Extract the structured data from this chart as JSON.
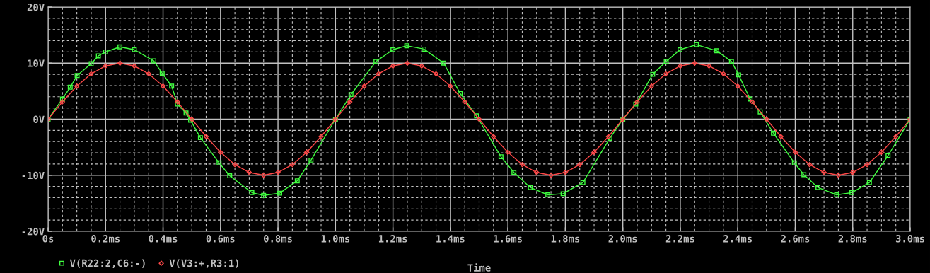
{
  "chart_data": {
    "type": "line",
    "xlabel": "Time",
    "xlim": [
      0,
      3.0
    ],
    "ylim": [
      -20,
      20
    ],
    "xticks": [
      {
        "value": 0,
        "label": "0s"
      },
      {
        "value": 0.2,
        "label": "0.2ms"
      },
      {
        "value": 0.4,
        "label": "0.4ms"
      },
      {
        "value": 0.6,
        "label": "0.6ms"
      },
      {
        "value": 0.8,
        "label": "0.8ms"
      },
      {
        "value": 1.0,
        "label": "1.0ms"
      },
      {
        "value": 1.2,
        "label": "1.2ms"
      },
      {
        "value": 1.4,
        "label": "1.4ms"
      },
      {
        "value": 1.6,
        "label": "1.6ms"
      },
      {
        "value": 1.8,
        "label": "1.8ms"
      },
      {
        "value": 2.0,
        "label": "2.0ms"
      },
      {
        "value": 2.2,
        "label": "2.2ms"
      },
      {
        "value": 2.4,
        "label": "2.4ms"
      },
      {
        "value": 2.6,
        "label": "2.6ms"
      },
      {
        "value": 2.8,
        "label": "2.8ms"
      },
      {
        "value": 3.0,
        "label": "3.0ms"
      }
    ],
    "yticks": [
      {
        "value": -20,
        "label": "-20V"
      },
      {
        "value": -10,
        "label": "-10V"
      },
      {
        "value": 0,
        "label": "0V"
      },
      {
        "value": 10,
        "label": "10V"
      },
      {
        "value": 20,
        "label": "20V"
      }
    ],
    "grid": true,
    "legend": "bottom left",
    "line_style": "solid",
    "series": [
      {
        "name": "V(R22:2,C6:-)",
        "color": "#40ff40",
        "marker": "square",
        "x": [
          0,
          0.05,
          0.077,
          0.101,
          0.15,
          0.175,
          0.2,
          0.25,
          0.3,
          0.368,
          0.397,
          0.43,
          0.45,
          0.48,
          0.496,
          0.53,
          0.595,
          0.632,
          0.709,
          0.75,
          0.806,
          0.867,
          0.915,
          1.0,
          1.054,
          1.141,
          1.2,
          1.248,
          1.308,
          1.377,
          1.434,
          1.491,
          1.576,
          1.621,
          1.678,
          1.739,
          1.792,
          1.861,
          1.955,
          2.0,
          2.045,
          2.104,
          2.151,
          2.199,
          2.256,
          2.327,
          2.378,
          2.403,
          2.443,
          2.478,
          2.524,
          2.597,
          2.63,
          2.679,
          2.744,
          2.797,
          2.858,
          2.923,
          3.0
        ],
        "values": [
          0,
          3.6,
          5.7,
          7.8,
          9.9,
          11.3,
          12.0,
          12.9,
          12.4,
          10.4,
          8.2,
          5.9,
          2.7,
          1.1,
          -0.2,
          -3.3,
          -7.8,
          -10.1,
          -13.1,
          -13.6,
          -13.2,
          -11.0,
          -7.3,
          0,
          4.4,
          10.3,
          12.4,
          13.1,
          12.5,
          10.0,
          4.6,
          0.6,
          -6.7,
          -9.5,
          -12.2,
          -13.5,
          -13.3,
          -11.3,
          -3.4,
          0,
          2.7,
          8.0,
          10.3,
          12.4,
          13.3,
          12.2,
          10.3,
          7.9,
          3.6,
          1.3,
          -2.5,
          -7.8,
          -9.9,
          -12.2,
          -13.5,
          -13.1,
          -11.3,
          -6.5,
          0
        ]
      },
      {
        "name": "V(V3:+,R3:1)",
        "color": "#ff4848",
        "marker": "diamond",
        "x": [
          0,
          0.05,
          0.1,
          0.15,
          0.2,
          0.25,
          0.3,
          0.35,
          0.4,
          0.45,
          0.5,
          0.55,
          0.6,
          0.65,
          0.7,
          0.75,
          0.8,
          0.85,
          0.9,
          0.95,
          1.0,
          1.05,
          1.1,
          1.15,
          1.2,
          1.25,
          1.3,
          1.35,
          1.4,
          1.45,
          1.5,
          1.55,
          1.6,
          1.65,
          1.7,
          1.75,
          1.8,
          1.85,
          1.9,
          1.95,
          2.0,
          2.05,
          2.1,
          2.15,
          2.2,
          2.25,
          2.3,
          2.35,
          2.4,
          2.45,
          2.5,
          2.55,
          2.6,
          2.65,
          2.7,
          2.75,
          2.8,
          2.85,
          2.9,
          2.95,
          3.0
        ],
        "values": [
          0,
          3.1,
          5.9,
          8.1,
          9.5,
          10,
          9.5,
          8.1,
          5.9,
          3.1,
          0,
          -3.1,
          -5.9,
          -8.1,
          -9.5,
          -10,
          -9.5,
          -8.1,
          -5.9,
          -3.1,
          0,
          3.1,
          5.9,
          8.1,
          9.5,
          10,
          9.5,
          8.1,
          5.9,
          3.1,
          0,
          -3.1,
          -5.9,
          -8.1,
          -9.5,
          -10,
          -9.5,
          -8.1,
          -5.9,
          -3.1,
          0,
          3.1,
          5.9,
          8.1,
          9.5,
          10,
          9.5,
          8.1,
          5.9,
          3.1,
          0,
          -3.1,
          -5.9,
          -8.1,
          -9.5,
          -10,
          -9.5,
          -8.1,
          -5.9,
          -3.1,
          0
        ]
      }
    ]
  }
}
